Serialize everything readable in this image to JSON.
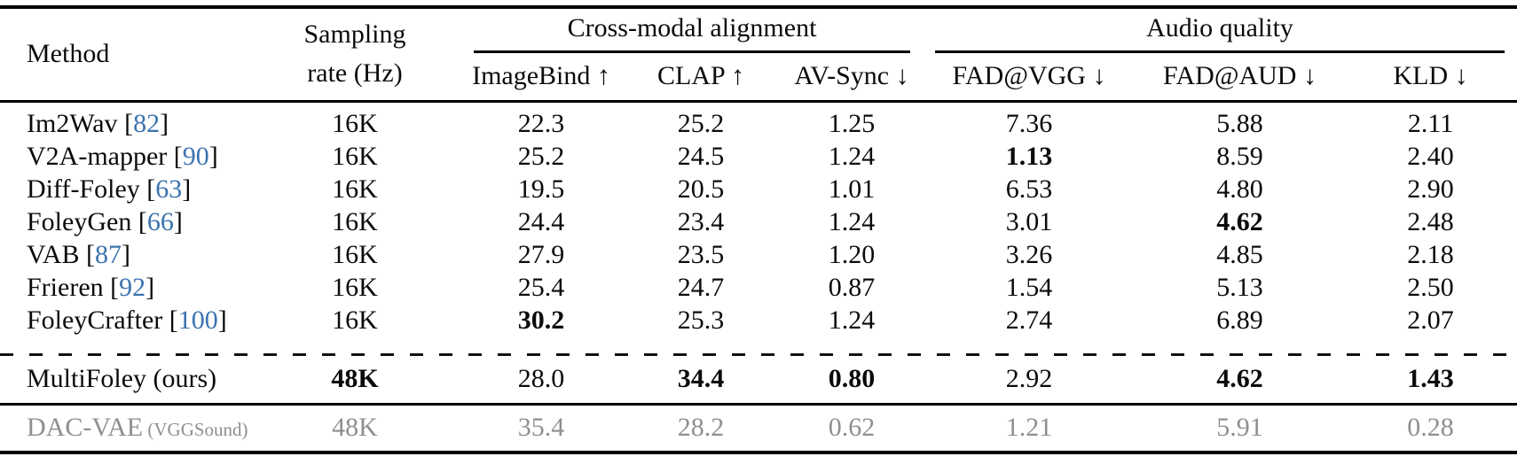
{
  "colors": {
    "citation_blue": "#3b73af",
    "muted_gray": "#8f8f8f",
    "text_black": "#0b0b0b"
  },
  "header": {
    "method": "Method",
    "sampling_line1": "Sampling",
    "sampling_line2": "rate (Hz)",
    "groups": [
      {
        "label": "Cross-modal alignment",
        "cols": [
          "ImageBind ↑",
          "CLAP ↑",
          "AV-Sync ↓"
        ]
      },
      {
        "label": "Audio quality",
        "cols": [
          "FAD@VGG ↓",
          "FAD@AUD ↓",
          "KLD ↓"
        ]
      }
    ]
  },
  "rows": [
    {
      "method": "Im2Wav",
      "cite": "82",
      "method_suffix": null,
      "sampling": "16K",
      "sampling_bold": false,
      "values": [
        "22.3",
        "25.2",
        "1.25",
        "7.36",
        "5.88",
        "2.11"
      ],
      "bold_values": [],
      "muted": false,
      "separator_before": null,
      "row_class": null
    },
    {
      "method": "V2A-mapper",
      "cite": "90",
      "method_suffix": null,
      "sampling": "16K",
      "sampling_bold": false,
      "values": [
        "25.2",
        "24.5",
        "1.24",
        "1.13",
        "8.59",
        "2.40"
      ],
      "bold_values": [
        3
      ],
      "muted": false,
      "separator_before": null,
      "row_class": null
    },
    {
      "method": "Diff-Foley",
      "cite": "63",
      "method_suffix": null,
      "sampling": "16K",
      "sampling_bold": false,
      "values": [
        "19.5",
        "20.5",
        "1.01",
        "6.53",
        "4.80",
        "2.90"
      ],
      "bold_values": [],
      "muted": false,
      "separator_before": null,
      "row_class": null
    },
    {
      "method": "FoleyGen",
      "cite": "66",
      "method_suffix": null,
      "sampling": "16K",
      "sampling_bold": false,
      "values": [
        "24.4",
        "23.4",
        "1.24",
        "3.01",
        "4.62",
        "2.48"
      ],
      "bold_values": [
        4
      ],
      "muted": false,
      "separator_before": null,
      "row_class": null
    },
    {
      "method": "VAB",
      "cite": "87",
      "method_suffix": null,
      "sampling": "16K",
      "sampling_bold": false,
      "values": [
        "27.9",
        "23.5",
        "1.20",
        "3.26",
        "4.85",
        "2.18"
      ],
      "bold_values": [],
      "muted": false,
      "separator_before": null,
      "row_class": null
    },
    {
      "method": "Frieren",
      "cite": "92",
      "method_suffix": null,
      "sampling": "16K",
      "sampling_bold": false,
      "values": [
        "25.4",
        "24.7",
        "0.87",
        "1.54",
        "5.13",
        "2.50"
      ],
      "bold_values": [],
      "muted": false,
      "separator_before": null,
      "row_class": null
    },
    {
      "method": "FoleyCrafter",
      "cite": "100",
      "method_suffix": null,
      "sampling": "16K",
      "sampling_bold": false,
      "values": [
        "30.2",
        "25.3",
        "1.24",
        "2.74",
        "6.89",
        "2.07"
      ],
      "bold_values": [
        0
      ],
      "muted": false,
      "separator_before": null,
      "row_class": null
    },
    {
      "method": "MultiFoley (ours)",
      "cite": null,
      "method_suffix": null,
      "sampling": "48K",
      "sampling_bold": true,
      "values": [
        "28.0",
        "34.4",
        "0.80",
        "2.92",
        "4.62",
        "1.43"
      ],
      "bold_values": [
        1,
        2,
        4,
        5
      ],
      "muted": false,
      "separator_before": "dashed",
      "row_class": "ours"
    },
    {
      "method": "DAC-VAE",
      "cite": null,
      "method_suffix": "(VGGSound)",
      "sampling": "48K",
      "sampling_bold": false,
      "values": [
        "35.4",
        "28.2",
        "0.62",
        "1.21",
        "5.91",
        "0.28"
      ],
      "bold_values": [],
      "muted": true,
      "separator_before": "solid",
      "row_class": "reference"
    }
  ]
}
